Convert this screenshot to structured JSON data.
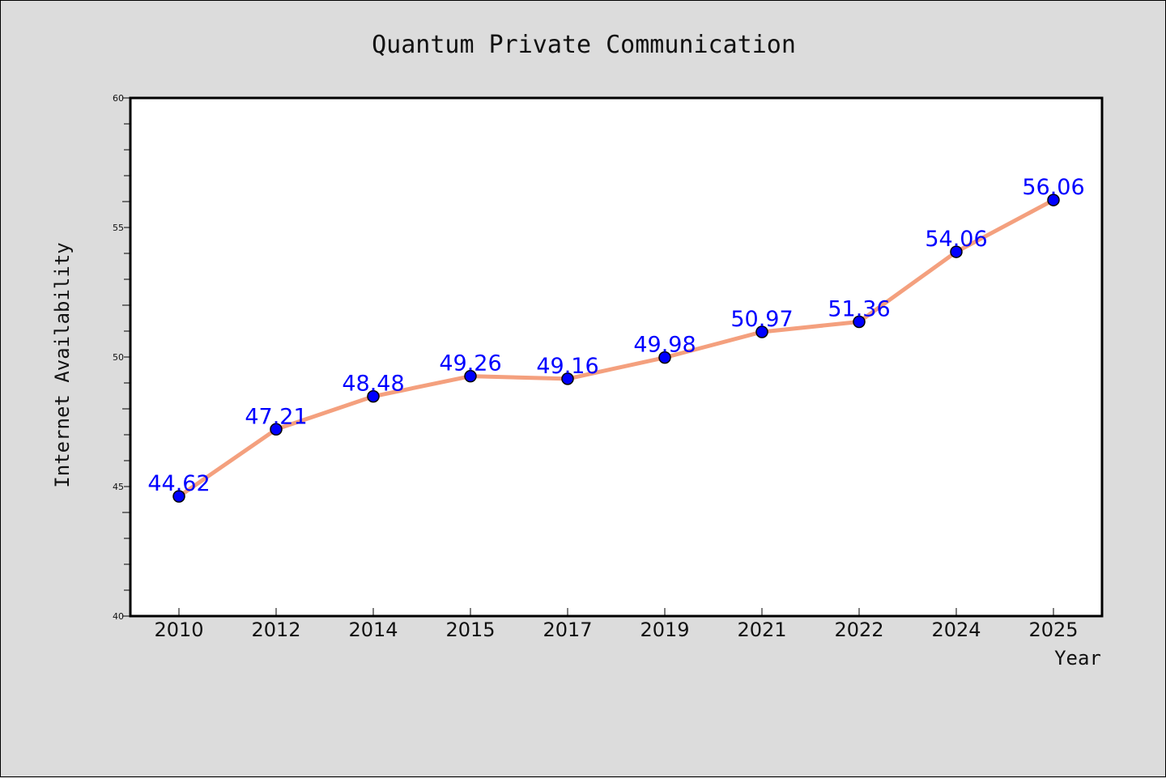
{
  "chart_data": {
    "type": "line",
    "title": "Quantum Private Communication",
    "xlabel": "Year",
    "ylabel": "Internet Availability",
    "categories": [
      "2010",
      "2012",
      "2014",
      "2015",
      "2017",
      "2019",
      "2021",
      "2022",
      "2024",
      "2025"
    ],
    "series": [
      {
        "values": [
          44.62,
          47.21,
          48.48,
          49.26,
          49.16,
          49.98,
          50.97,
          51.36,
          54.06,
          56.06
        ],
        "data_labels": [
          "44.62",
          "47.21",
          "48.48",
          "49.26",
          "49.16",
          "49.98",
          "50.97",
          "51.36",
          "54.06",
          "56.06"
        ]
      }
    ],
    "ylim": [
      40,
      60
    ],
    "yticks": [
      "40",
      "45",
      "50",
      "55",
      "60"
    ],
    "grid": false,
    "legend": "none",
    "colors": {
      "line": "#f4a07e",
      "marker_fill": "#0000ff",
      "marker_edge": "#000000",
      "data_label": "#0000ff",
      "background": "#dcdcdc",
      "plot_background": "#ffffff"
    }
  }
}
